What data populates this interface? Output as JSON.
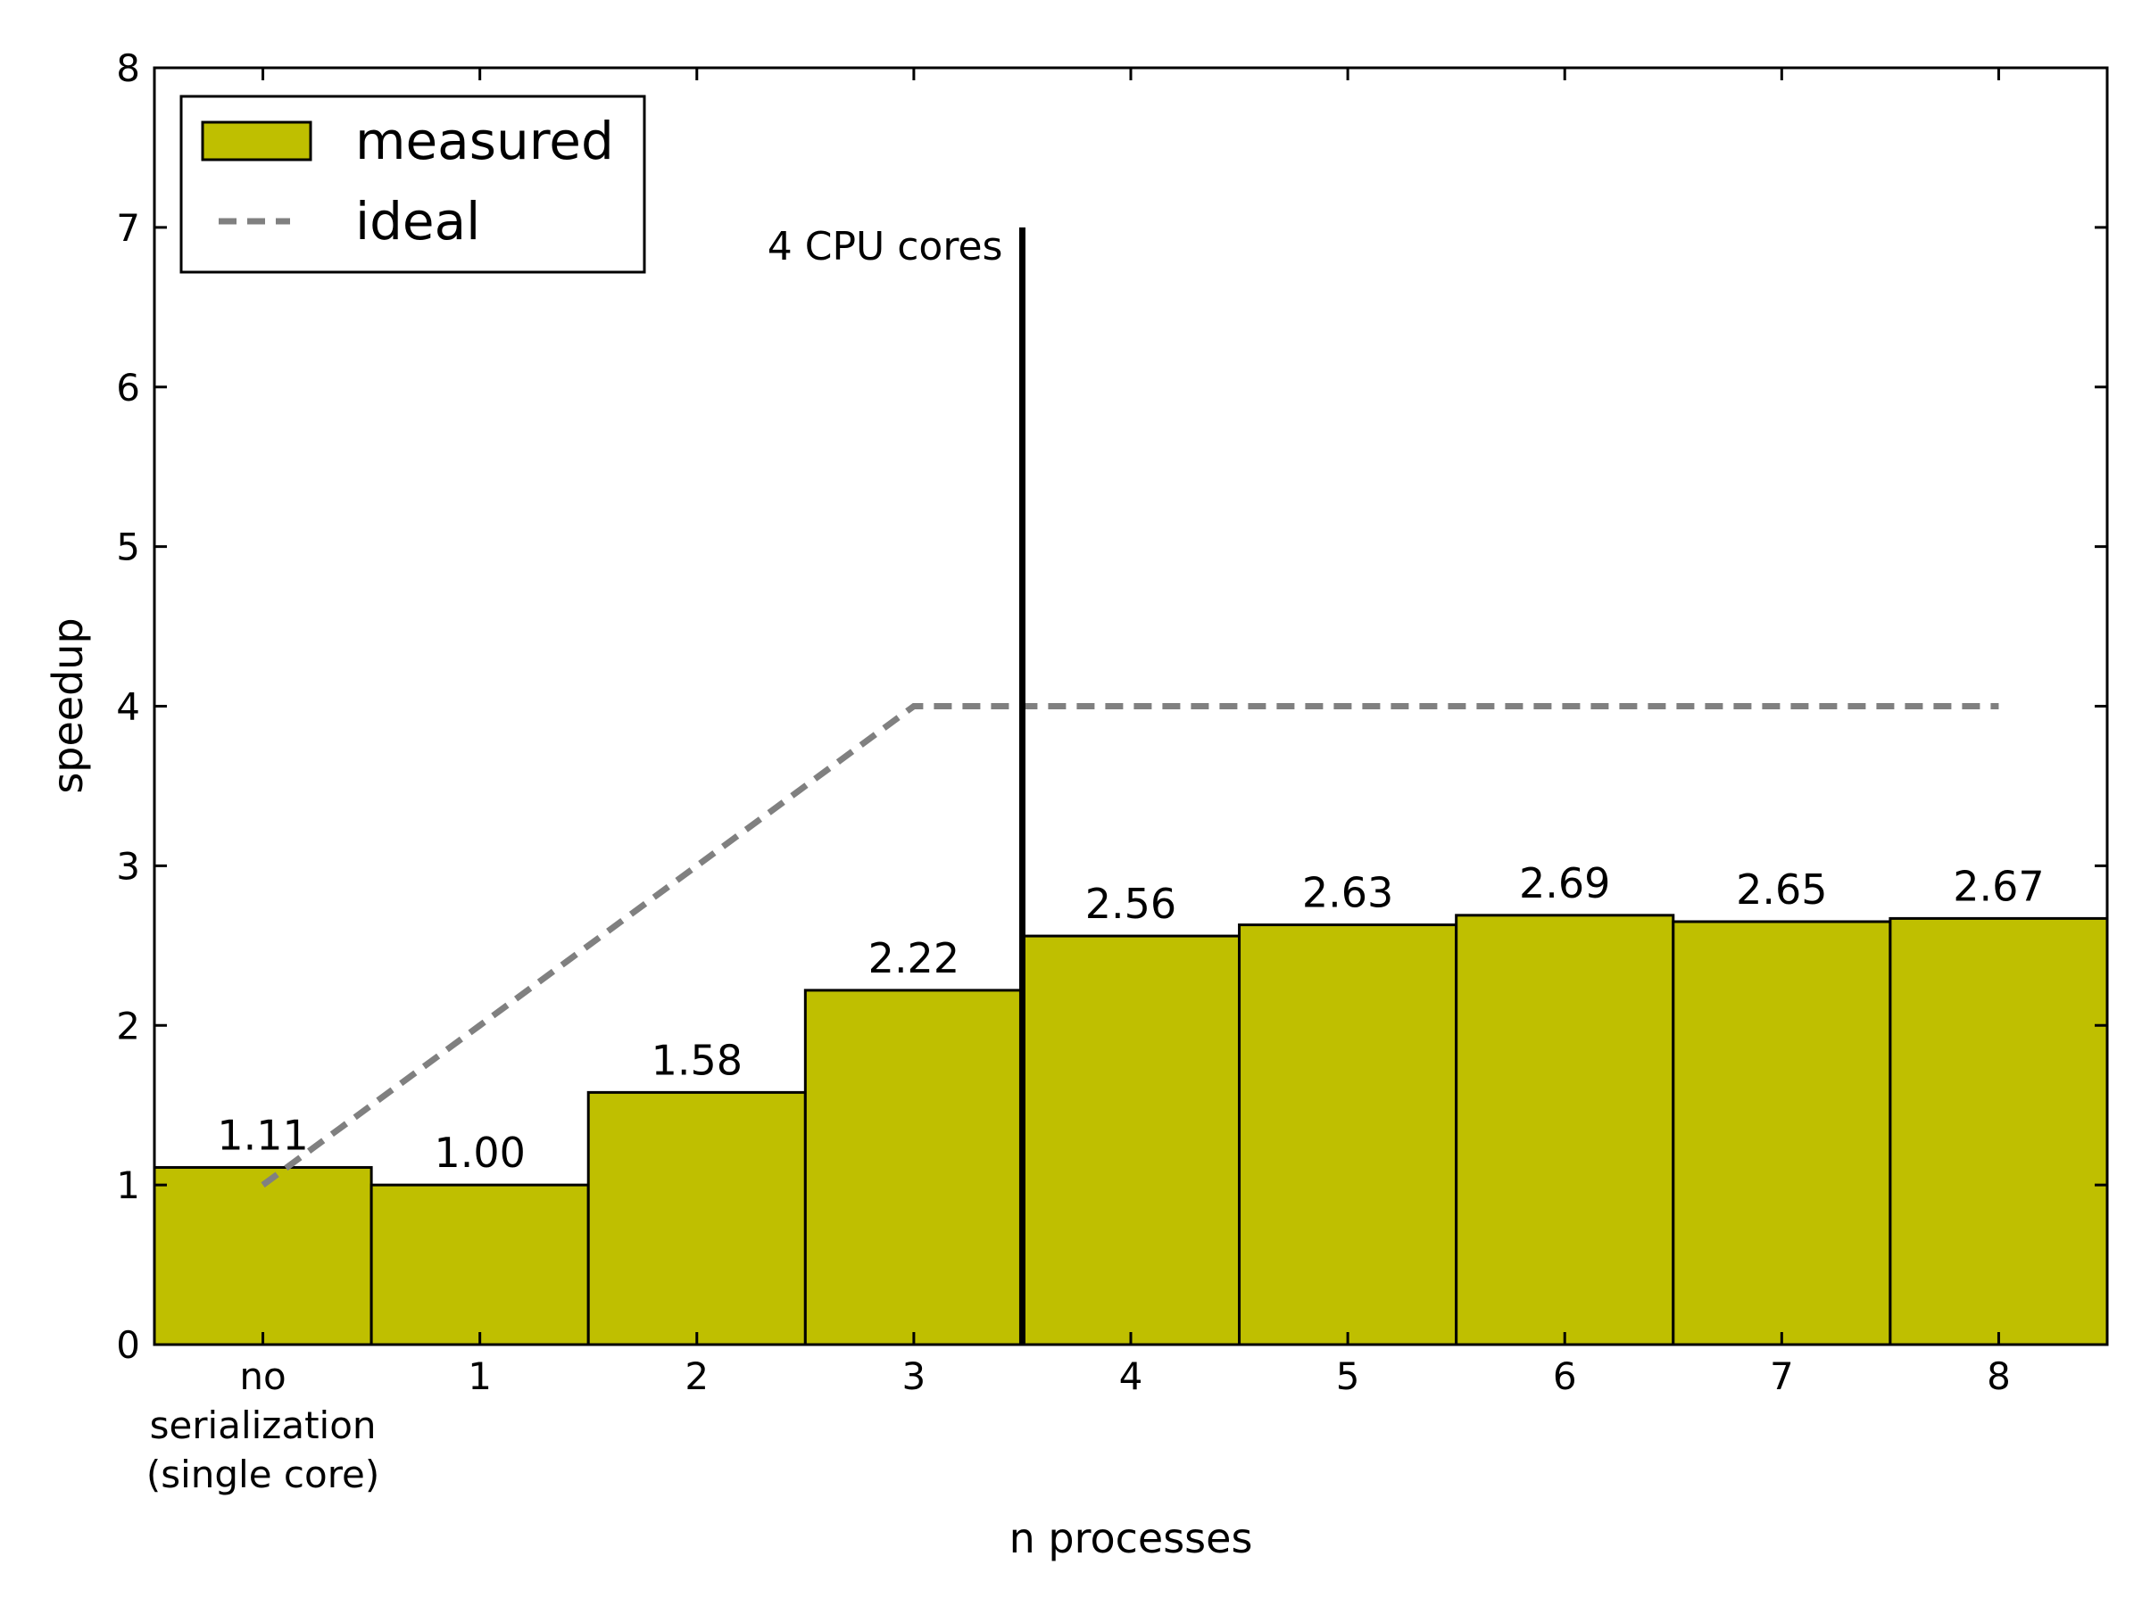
{
  "chart_data": {
    "type": "bar",
    "categories": [
      [
        "no",
        "serialization",
        "(single core)"
      ],
      [
        "1"
      ],
      [
        "2"
      ],
      [
        "3"
      ],
      [
        "4"
      ],
      [
        "5"
      ],
      [
        "6"
      ],
      [
        "7"
      ],
      [
        "8"
      ]
    ],
    "series": [
      {
        "name": "measured",
        "values": [
          1.11,
          1.0,
          1.58,
          2.22,
          2.56,
          2.63,
          2.69,
          2.65,
          2.67
        ],
        "value_labels": [
          "1.11",
          "1.00",
          "1.58",
          "2.22",
          "2.56",
          "2.63",
          "2.69",
          "2.65",
          "2.67"
        ],
        "color": "#bfbf00"
      },
      {
        "name": "ideal",
        "style": "dashed",
        "color": "#808080",
        "x": [
          1,
          2,
          3,
          4,
          5,
          6,
          7,
          8,
          9
        ],
        "y": [
          1,
          2,
          3,
          4,
          4,
          4,
          4,
          4,
          4
        ]
      }
    ],
    "annotation": {
      "text": "4 CPU cores",
      "x": 4.5,
      "y_range": [
        0,
        7
      ]
    },
    "xlabel": "n processes",
    "ylabel": "speedup",
    "ylim": [
      0,
      8
    ],
    "yticks": [
      0,
      1,
      2,
      3,
      4,
      5,
      6,
      7,
      8
    ],
    "legend_position": "top-left",
    "grid": false
  }
}
